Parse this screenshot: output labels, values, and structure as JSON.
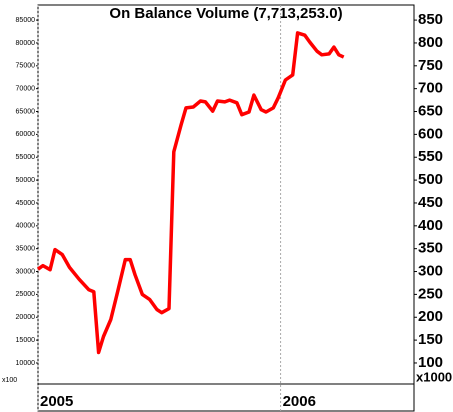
{
  "chart_data": {
    "type": "line",
    "title": "On Balance Volume (7,713,253.0)",
    "x": [
      2005.0,
      2005.02,
      2005.05,
      2005.07,
      2005.1,
      2005.13,
      2005.17,
      2005.21,
      2005.23,
      2005.25,
      2005.27,
      2005.3,
      2005.33,
      2005.36,
      2005.38,
      2005.4,
      2005.43,
      2005.46,
      2005.49,
      2005.51,
      2005.54,
      2005.56,
      2005.59,
      2005.61,
      2005.64,
      2005.67,
      2005.69,
      2005.72,
      2005.74,
      2005.77,
      2005.79,
      2005.82,
      2005.84,
      2005.87,
      2005.89,
      2005.92,
      2005.94,
      2005.97,
      2005.99,
      2006.02,
      2006.05,
      2006.07,
      2006.1,
      2006.12,
      2006.15,
      2006.17,
      2006.2,
      2006.22,
      2006.24,
      2006.26
    ],
    "series": [
      {
        "color": "#ff0000",
        "values": [
          30500,
          31300,
          30400,
          34800,
          33700,
          30900,
          28300,
          26000,
          25600,
          12300,
          15800,
          19500,
          26000,
          32600,
          32600,
          29300,
          25000,
          23900,
          21700,
          21000,
          21900,
          56200,
          62100,
          65800,
          66000,
          67300,
          67100,
          65100,
          67300,
          67100,
          67500,
          66900,
          64300,
          64900,
          68600,
          65400,
          64900,
          65800,
          68000,
          71900,
          73000,
          82200,
          81700,
          80200,
          78200,
          77400,
          77600,
          79100,
          77400,
          76900
        ]
      }
    ],
    "xlim": [
      2005,
      2006.55
    ],
    "xticks": [
      2005,
      2006
    ],
    "ylim": [
      5400,
      88300
    ],
    "yticks": [
      10000,
      15000,
      20000,
      25000,
      30000,
      35000,
      40000,
      45000,
      50000,
      55000,
      60000,
      65000,
      70000,
      75000,
      80000,
      85000
    ],
    "y2lim": [
      54,
      883
    ],
    "y2ticks": [
      100,
      150,
      200,
      250,
      300,
      350,
      400,
      450,
      500,
      550,
      600,
      650,
      700,
      750,
      800,
      850
    ],
    "y_unit_label": "x100",
    "y2_unit_label": "x1000",
    "grid": true
  }
}
